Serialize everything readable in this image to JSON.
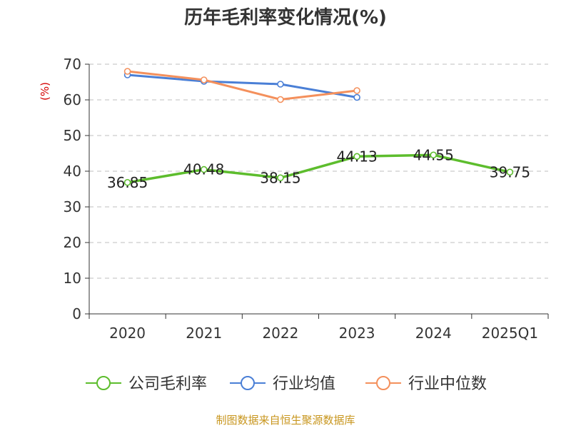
{
  "chart_data": {
    "type": "line",
    "title": "历年毛利率变化情况(%)",
    "ylabel": "(%)",
    "xlabel": "",
    "categories": [
      "2020",
      "2021",
      "2022",
      "2023",
      "2024",
      "2025Q1"
    ],
    "ylim": [
      0,
      70
    ],
    "yticks": [
      0,
      10,
      20,
      30,
      40,
      50,
      60,
      70
    ],
    "grid": true,
    "legend_position": "bottom",
    "series": [
      {
        "name": "公司毛利率",
        "color": "#5dbd2d",
        "values": [
          36.85,
          40.48,
          38.15,
          44.13,
          44.55,
          39.75
        ],
        "labels": [
          "36.85",
          "40.48",
          "38.15",
          "44.13",
          "44.55",
          "39.75"
        ],
        "show_labels": true
      },
      {
        "name": "行业均值",
        "color": "#4a7fd6",
        "values": [
          67.0,
          65.2,
          64.4,
          60.7,
          null,
          null
        ],
        "show_labels": false
      },
      {
        "name": "行业中位数",
        "color": "#f4905c",
        "values": [
          68.0,
          65.6,
          60.1,
          62.6,
          null,
          null
        ],
        "show_labels": false
      }
    ],
    "source": "制图数据来自恒生聚源数据库"
  }
}
